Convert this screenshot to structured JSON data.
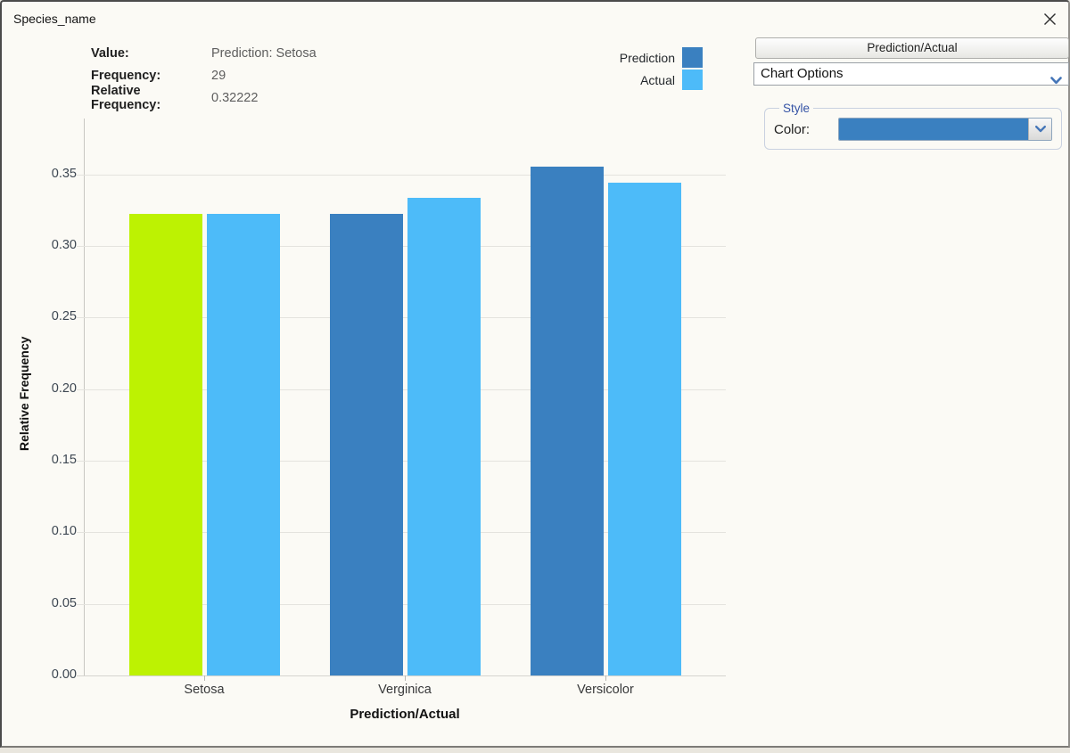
{
  "window": {
    "title": "Species_name"
  },
  "info_panel": {
    "rows": [
      {
        "label": "Value:",
        "value": "Prediction: Setosa"
      },
      {
        "label": "Frequency:",
        "value": "29"
      },
      {
        "label": "Relative Frequency:",
        "value": "0.32222"
      }
    ]
  },
  "legend": {
    "items": [
      {
        "label": "Prediction",
        "color": "#3a80c0"
      },
      {
        "label": "Actual",
        "color": "#4dbbf9"
      }
    ]
  },
  "side_panel": {
    "button_label": "Prediction/Actual",
    "dropdown_value": "Chart Options",
    "style_group": {
      "legend": "Style",
      "color_label": "Color:",
      "color_value": "#3a80c0"
    }
  },
  "chart_data": {
    "type": "bar",
    "title": "",
    "xlabel": "Prediction/Actual",
    "ylabel": "Relative Frequency",
    "categories": [
      "Setosa",
      "Verginica",
      "Versicolor"
    ],
    "series": [
      {
        "name": "Prediction",
        "color": "#3a80c0",
        "values": [
          0.32222,
          0.32222,
          0.35556
        ]
      },
      {
        "name": "Actual",
        "color": "#4dbbf9",
        "values": [
          0.32222,
          0.33333,
          0.34444
        ]
      }
    ],
    "highlight": {
      "category": "Setosa",
      "series": "Prediction",
      "color": "#bdf202"
    },
    "yticks": [
      0.0,
      0.05,
      0.1,
      0.15,
      0.2,
      0.25,
      0.3,
      0.35
    ],
    "ylim": [
      0,
      0.389
    ],
    "grid": true,
    "legend_position": "top-right"
  }
}
